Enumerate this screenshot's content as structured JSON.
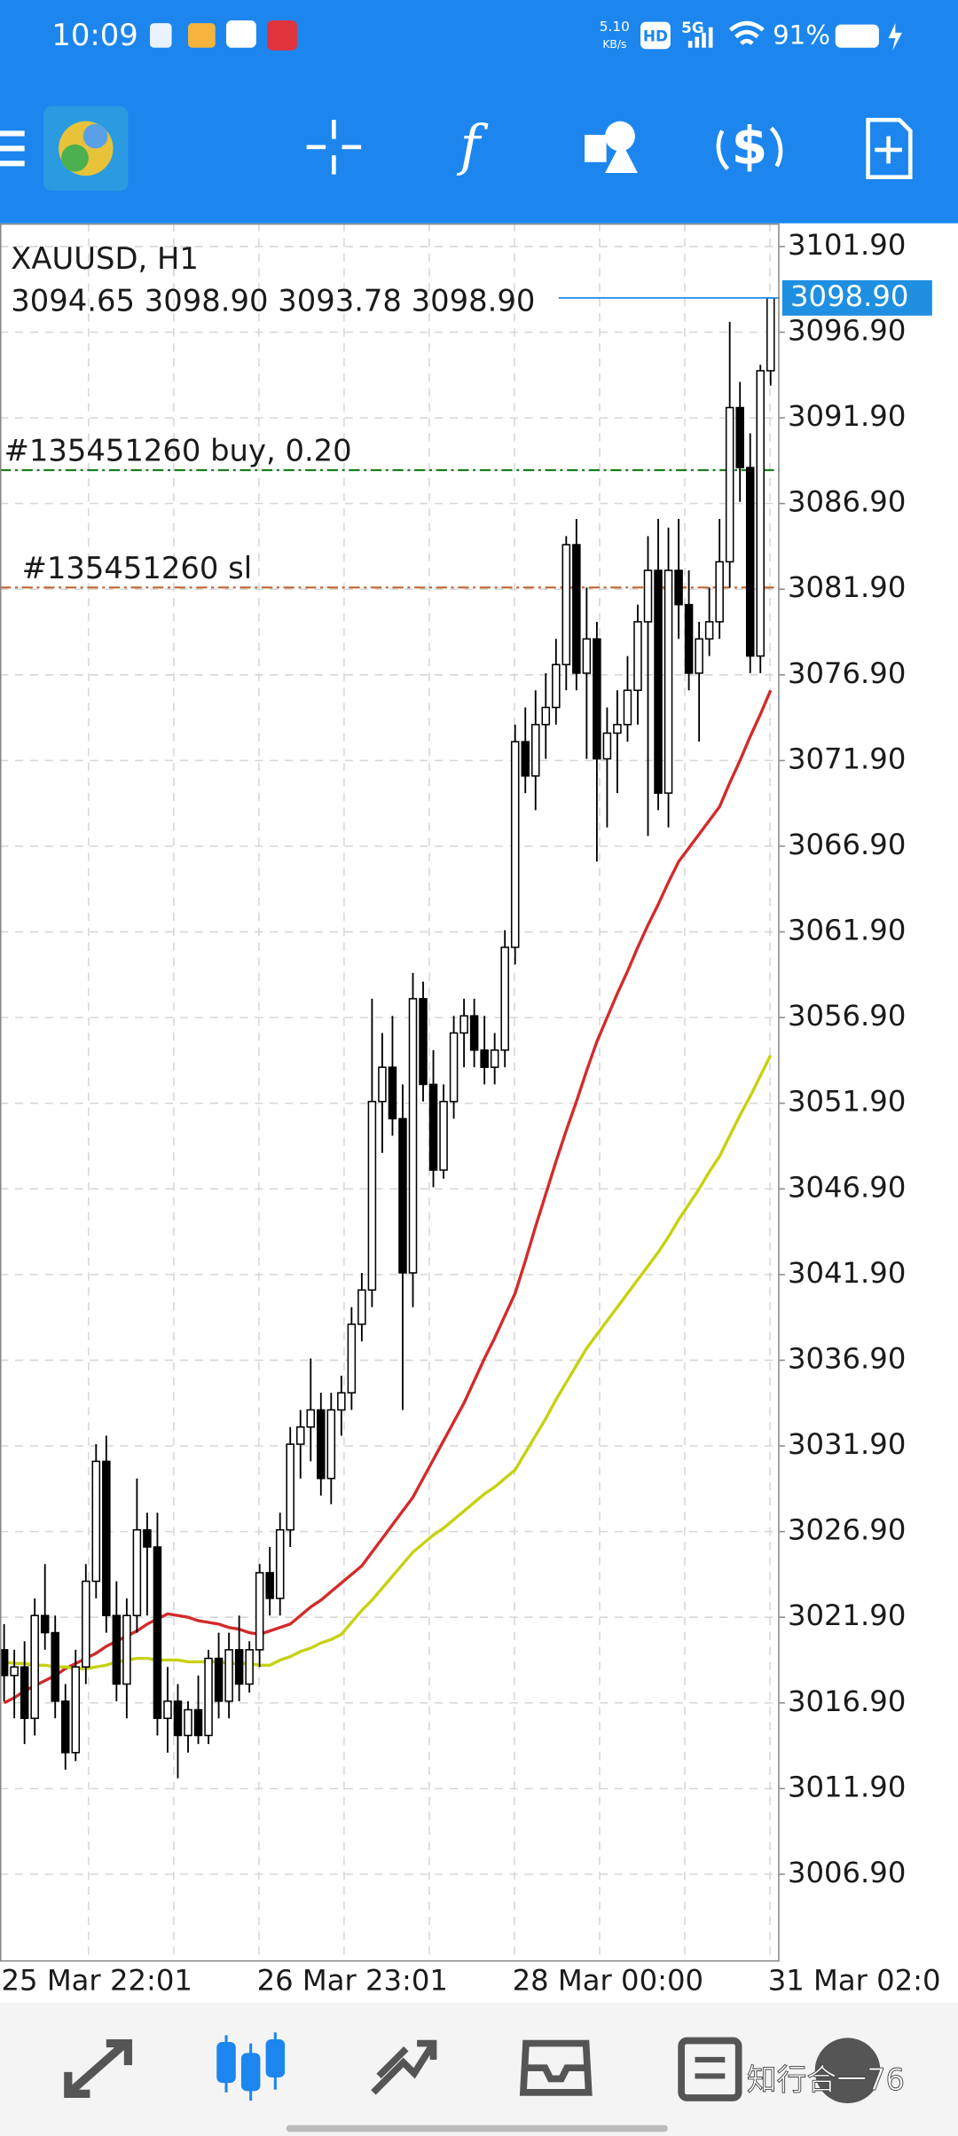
{
  "status_bar": {
    "time": "10:09",
    "speed": "5.10",
    "speed_unit": "KB/s",
    "hd": "HD",
    "network": "5G",
    "battery": "91%"
  },
  "chart_data": {
    "type": "candlestick",
    "title": "XAUUSD, H1",
    "header_ohlc": "3094.65 3098.90 3093.78 3098.90",
    "categories": [
      "25 Mar 22:01",
      null,
      null,
      null,
      null,
      null,
      null,
      null,
      null,
      null,
      null,
      null,
      null,
      null,
      null,
      null,
      null,
      null,
      null,
      null,
      null,
      null,
      null,
      null,
      null,
      "26 Mar 23:01",
      null,
      null,
      null,
      null,
      null,
      null,
      null,
      null,
      null,
      null,
      null,
      null,
      null,
      null,
      null,
      null,
      null,
      null,
      null,
      null,
      null,
      null,
      null,
      null,
      "28 Mar 00:00",
      null,
      null,
      null,
      null,
      null,
      null,
      null,
      null,
      null,
      null,
      null,
      null,
      null,
      null,
      null,
      null,
      null,
      null,
      null,
      null,
      null,
      null,
      null,
      null,
      "31 Mar 02:0"
    ],
    "open": [
      3020,
      3018.5,
      3019,
      3016,
      3022,
      3021,
      3017,
      3014,
      3019,
      3024,
      3031,
      3022,
      3018,
      3022,
      3027,
      3026,
      3016,
      3017,
      3015,
      3016.5,
      3015,
      3019.5,
      3017,
      3020,
      3018,
      3020,
      3024.5,
      3023,
      3027,
      3032,
      3033,
      3034,
      3030,
      3034,
      3035,
      3039,
      3041,
      3052,
      3054,
      3051,
      3042,
      3058,
      3053,
      3048,
      3052,
      3056,
      3057,
      3055,
      3054,
      3055,
      3061,
      3073,
      3071,
      3074,
      3075,
      3077.5,
      3084.5,
      3077,
      3079,
      3072,
      3073.5,
      3074,
      3076,
      3080,
      3083,
      3070,
      3083,
      3081,
      3077,
      3079,
      3080,
      3083.5,
      3092.5,
      3089,
      3078,
      3094.65
    ],
    "high": [
      3021.5,
      3020,
      3020.5,
      3023,
      3025,
      3022,
      3018,
      3020,
      3025,
      3032,
      3032.5,
      3024,
      3023,
      3030,
      3028,
      3028,
      3019,
      3018,
      3017,
      3018.5,
      3020,
      3021,
      3021,
      3022,
      3020.5,
      3025,
      3026,
      3028,
      3033,
      3034,
      3037,
      3035,
      3035,
      3036,
      3040,
      3042,
      3058,
      3056,
      3057,
      3053,
      3059.5,
      3059,
      3055,
      3053,
      3057,
      3058,
      3058,
      3057,
      3056,
      3062,
      3074,
      3075,
      3076,
      3077,
      3079,
      3085,
      3086,
      3082,
      3080,
      3075,
      3076,
      3078,
      3081,
      3085,
      3086,
      3085.5,
      3086,
      3083,
      3080,
      3082,
      3086,
      3097.5,
      3094,
      3091,
      3095,
      3098.9
    ],
    "low": [
      3017,
      3016,
      3014.5,
      3015,
      3020,
      3016,
      3013,
      3013.5,
      3018,
      3023,
      3021,
      3017,
      3016,
      3021,
      3022,
      3015,
      3014,
      3012.5,
      3014,
      3014.5,
      3014.5,
      3016,
      3016,
      3017,
      3017.5,
      3019,
      3022,
      3022,
      3026,
      3030,
      3031,
      3029,
      3028.5,
      3032.5,
      3034,
      3038,
      3040,
      3049,
      3050,
      3034,
      3040,
      3052,
      3047,
      3047.5,
      3051,
      3054,
      3054,
      3053,
      3053,
      3054,
      3060,
      3070,
      3069,
      3072,
      3074,
      3076,
      3076,
      3072,
      3066,
      3068,
      3070,
      3073,
      3074,
      3067.5,
      3069,
      3068,
      3079,
      3076,
      3073,
      3078,
      3079,
      3082,
      3087,
      3077,
      3077,
      3093.78
    ],
    "close": [
      3018.5,
      3019,
      3016,
      3022,
      3021,
      3017,
      3014,
      3019,
      3024,
      3031,
      3022,
      3018,
      3022,
      3027,
      3026,
      3016,
      3017,
      3015,
      3016.5,
      3015,
      3019.5,
      3017,
      3020,
      3018,
      3020,
      3024.5,
      3023,
      3027,
      3032,
      3033,
      3034,
      3030,
      3034,
      3035,
      3039,
      3041,
      3052,
      3054,
      3051,
      3042,
      3058,
      3053,
      3048,
      3052,
      3056,
      3057,
      3055,
      3054,
      3055,
      3061,
      3073,
      3071,
      3074,
      3075,
      3077.5,
      3084.5,
      3077,
      3079,
      3072,
      3073.5,
      3074,
      3076,
      3080,
      3083,
      3070,
      3083,
      3081,
      3077,
      3079,
      3080,
      3083.5,
      3092.5,
      3089,
      3078,
      3094.65,
      3098.9
    ],
    "lines": [
      {
        "color": "#d42a2a",
        "values": [
          3016.9,
          3017.2,
          3017.6,
          3017.9,
          3018.2,
          3018.5,
          3018.9,
          3019.2,
          3019.5,
          3019.8,
          3020.2,
          3020.5,
          3020.8,
          3021.1,
          3021.5,
          3021.8,
          3022.1,
          3022.0,
          3021.9,
          3021.7,
          3021.6,
          3021.5,
          3021.3,
          3021.2,
          3021.0,
          3020.9,
          3021.1,
          3021.3,
          3021.5,
          3022.0,
          3022.5,
          3022.9,
          3023.4,
          3023.9,
          3024.4,
          3024.9,
          3025.7,
          3026.5,
          3027.3,
          3028.1,
          3028.9,
          3030.0,
          3031.1,
          3032.2,
          3033.3,
          3034.4,
          3035.7,
          3037.0,
          3038.2,
          3039.5,
          3040.8,
          3042.7,
          3044.7,
          3046.6,
          3048.5,
          3050.3,
          3052.0,
          3053.8,
          3055.5,
          3056.9,
          3058.3,
          3059.6,
          3061.0,
          3062.3,
          3063.5,
          3064.8,
          3066.0,
          3066.8,
          3067.6,
          3068.4,
          3069.2,
          3070.6,
          3071.9,
          3073.3,
          3074.6,
          3076.0
        ]
      },
      {
        "color": "#c6d20e",
        "values": [
          3019.3,
          3019.2,
          3019.2,
          3019.1,
          3019.1,
          3019.0,
          3019.0,
          3018.9,
          3018.9,
          3019.0,
          3019.1,
          3019.3,
          3019.4,
          3019.5,
          3019.5,
          3019.4,
          3019.4,
          3019.4,
          3019.3,
          3019.3,
          3019.3,
          3019.3,
          3019.2,
          3019.2,
          3019.2,
          3019.1,
          3019.1,
          3019.4,
          3019.6,
          3019.9,
          3020.1,
          3020.4,
          3020.6,
          3020.9,
          3021.6,
          3022.3,
          3022.9,
          3023.6,
          3024.3,
          3025.0,
          3025.7,
          3026.2,
          3026.7,
          3027.1,
          3027.6,
          3028.1,
          3028.6,
          3029.1,
          3029.5,
          3030.0,
          3030.5,
          3031.5,
          3032.5,
          3033.5,
          3034.6,
          3035.6,
          3036.6,
          3037.6,
          3038.4,
          3039.2,
          3040.0,
          3040.8,
          3041.6,
          3042.4,
          3043.2,
          3044.1,
          3045.1,
          3046.0,
          3046.9,
          3047.9,
          3048.8,
          3050.0,
          3051.2,
          3052.3,
          3053.5,
          3054.7
        ]
      }
    ],
    "levels": [
      {
        "label": "#135451260 buy, 0.20",
        "value": 3088.85,
        "color": "#1b7d1b"
      },
      {
        "label": "#135451260 sl",
        "value": 3082.0,
        "color": "#c0652e"
      }
    ],
    "current_price": {
      "value": 3098.9,
      "label": "3098.90",
      "color": "#1e8fe1"
    },
    "bull_color": "#ffffff",
    "bear_color": "#000000",
    "ylim": [
      3001.8,
      3103.25
    ],
    "yticks": [
      {
        "value": 3101.9,
        "label": "3101.90"
      },
      {
        "value": 3096.9,
        "label": "3096.90"
      },
      {
        "value": 3091.9,
        "label": "3091.90"
      },
      {
        "value": 3086.9,
        "label": "3086.90"
      },
      {
        "value": 3081.9,
        "label": "3081.90"
      },
      {
        "value": 3076.9,
        "label": "3076.90"
      },
      {
        "value": 3071.9,
        "label": "3071.90"
      },
      {
        "value": 3066.9,
        "label": "3066.90"
      },
      {
        "value": 3061.9,
        "label": "3061.90"
      },
      {
        "value": 3056.9,
        "label": "3056.90"
      },
      {
        "value": 3051.9,
        "label": "3051.90"
      },
      {
        "value": 3046.9,
        "label": "3046.90"
      },
      {
        "value": 3041.9,
        "label": "3041.90"
      },
      {
        "value": 3036.9,
        "label": "3036.90"
      },
      {
        "value": 3031.9,
        "label": "3031.90"
      },
      {
        "value": 3026.9,
        "label": "3026.90"
      },
      {
        "value": 3021.9,
        "label": "3021.90"
      },
      {
        "value": 3016.9,
        "label": "3016.90"
      },
      {
        "value": 3011.9,
        "label": "3011.90"
      },
      {
        "value": 3006.9,
        "label": "3006.90"
      }
    ],
    "grid": true
  },
  "bottom_bar": {
    "watermark": "知行合一76"
  }
}
